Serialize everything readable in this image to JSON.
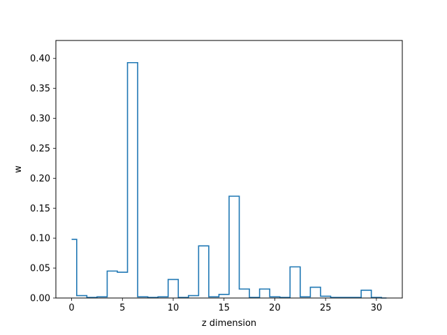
{
  "chart_data": {
    "type": "step",
    "title": "",
    "xlabel": "z dimension",
    "ylabel": "w",
    "xlim": [
      -1.55,
      32.55
    ],
    "ylim": [
      0,
      0.43
    ],
    "xticks": [
      0,
      5,
      10,
      15,
      20,
      25,
      30
    ],
    "xtick_labels": [
      "0",
      "5",
      "10",
      "15",
      "20",
      "25",
      "30"
    ],
    "yticks": [
      0.0,
      0.05,
      0.1,
      0.15,
      0.2,
      0.25,
      0.3,
      0.35,
      0.4
    ],
    "ytick_labels": [
      "0.00",
      "0.05",
      "0.10",
      "0.15",
      "0.20",
      "0.25",
      "0.30",
      "0.35",
      "0.40"
    ],
    "grid": false,
    "line_color": "#1f77b4",
    "x": [
      0,
      1,
      2,
      3,
      4,
      5,
      6,
      7,
      8,
      9,
      10,
      11,
      12,
      13,
      14,
      15,
      16,
      17,
      18,
      19,
      20,
      21,
      22,
      23,
      24,
      25,
      26,
      27,
      28,
      29,
      30,
      31
    ],
    "values": [
      0.098,
      0.004,
      0.001,
      0.002,
      0.045,
      0.043,
      0.393,
      0.002,
      0.001,
      0.002,
      0.031,
      0.001,
      0.004,
      0.087,
      0.002,
      0.006,
      0.17,
      0.015,
      0.001,
      0.015,
      0.002,
      0.001,
      0.052,
      0.002,
      0.018,
      0.003,
      0.001,
      0.001,
      0.001,
      0.013,
      0.001,
      0.0
    ]
  }
}
